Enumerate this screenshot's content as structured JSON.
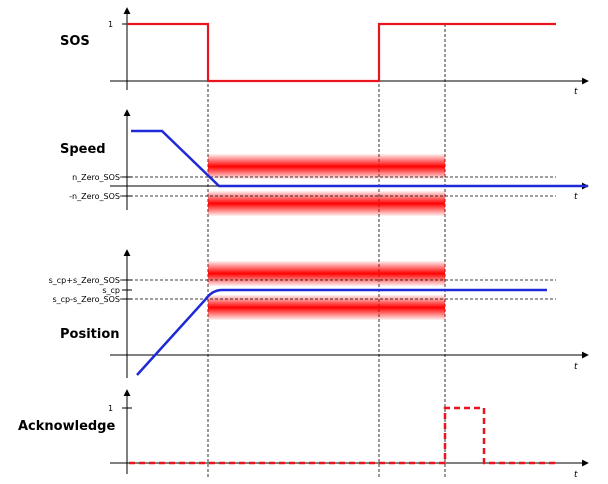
{
  "panels": {
    "sos": {
      "title": "SOS",
      "y_tick": "1",
      "x_axis": "t"
    },
    "speed": {
      "title": "Speed",
      "upper_threshold": "n_Zero_SOS",
      "lower_threshold": "-n_Zero_SOS",
      "x_axis": "t"
    },
    "position": {
      "title": "Position",
      "upper_threshold": "s_cp+s_Zero_SOS",
      "setpoint": "s_cp",
      "lower_threshold": "s_cp-s_Zero_SOS",
      "x_axis": "t"
    },
    "acknowledge": {
      "title": "Acknowledge",
      "y_tick": "1",
      "x_axis": "t"
    }
  },
  "colors": {
    "sos_signal": "#e8141e",
    "band": "#ff0000",
    "motion": "#1e2ad8",
    "acknowledge_signal": "#e8141e",
    "axis": "#000000"
  }
}
